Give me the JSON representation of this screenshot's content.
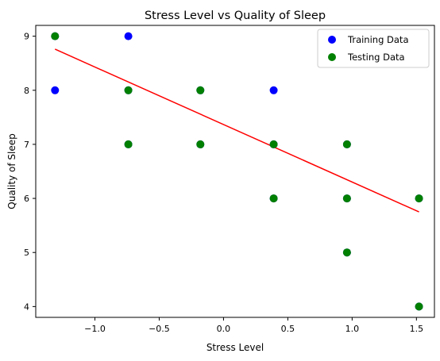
{
  "chart_data": {
    "type": "scatter",
    "title": "Stress Level vs Quality of Sleep",
    "xlabel": "Stress Level",
    "ylabel": "Quality of Sleep",
    "xlim": [
      -1.46,
      1.64
    ],
    "ylim": [
      3.8,
      9.2
    ],
    "xticks": [
      -1.0,
      -0.5,
      0.0,
      0.5,
      1.0,
      1.5
    ],
    "xtick_labels": [
      "−1.0",
      "−0.5",
      "0.0",
      "0.5",
      "1.0",
      "1.5"
    ],
    "yticks": [
      4,
      5,
      6,
      7,
      8,
      9
    ],
    "ytick_labels": [
      "4",
      "5",
      "6",
      "7",
      "8",
      "9"
    ],
    "grid": false,
    "legend": {
      "position": "top-right",
      "entries": [
        {
          "label": "Training Data",
          "color": "#0000ff"
        },
        {
          "label": "Testing Data",
          "color": "#008000"
        }
      ]
    },
    "series": [
      {
        "name": "Training Data",
        "kind": "scatter",
        "color": "#0000ff",
        "points": [
          [
            -1.31,
            9
          ],
          [
            -1.31,
            8
          ],
          [
            -0.74,
            9
          ],
          [
            -0.74,
            8
          ],
          [
            -0.74,
            7
          ],
          [
            -0.18,
            8
          ],
          [
            -0.18,
            7
          ],
          [
            0.39,
            8
          ],
          [
            0.39,
            7
          ],
          [
            0.39,
            6
          ],
          [
            0.96,
            7
          ],
          [
            0.96,
            6
          ],
          [
            0.96,
            5
          ],
          [
            1.52,
            6
          ],
          [
            1.52,
            4
          ]
        ]
      },
      {
        "name": "Testing Data",
        "kind": "scatter",
        "color": "#008000",
        "points": [
          [
            -1.31,
            9
          ],
          [
            -0.74,
            8
          ],
          [
            -0.74,
            7
          ],
          [
            -0.18,
            8
          ],
          [
            -0.18,
            7
          ],
          [
            0.39,
            7
          ],
          [
            0.39,
            6
          ],
          [
            0.96,
            7
          ],
          [
            0.96,
            6
          ],
          [
            0.96,
            5
          ],
          [
            1.52,
            6
          ],
          [
            1.52,
            4
          ]
        ]
      },
      {
        "kind": "line",
        "color": "#ff0000",
        "points": [
          [
            -1.31,
            8.76
          ],
          [
            1.52,
            5.75
          ]
        ]
      }
    ]
  }
}
